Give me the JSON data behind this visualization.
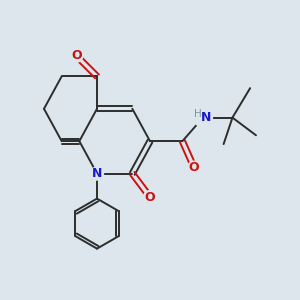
{
  "background_color": "#dce6ec",
  "bond_color": "#2d2d2d",
  "nitrogen_color": "#1a1acc",
  "oxygen_color": "#cc1111",
  "hydrogen_color": "#7a9a9a",
  "figsize": [
    3.0,
    3.0
  ],
  "dpi": 100,
  "xlim": [
    0,
    10
  ],
  "ylim": [
    0,
    10
  ],
  "lw": 1.4
}
